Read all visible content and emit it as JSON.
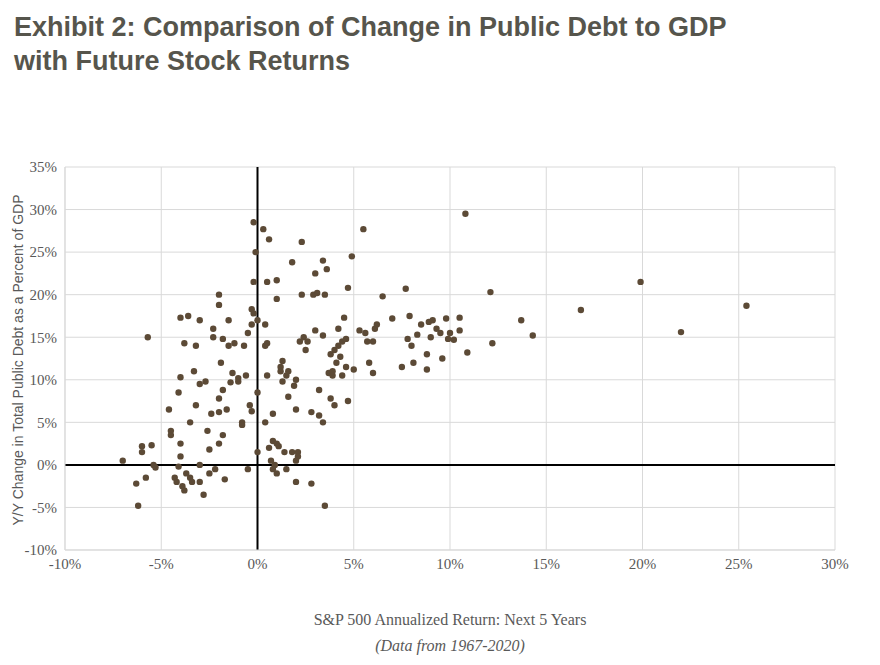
{
  "chart_data": {
    "type": "scatter",
    "title": "Exhibit 2: Comparison of Change in Public Debt to GDP\nwith Future Stock Returns",
    "x_label": "S&P 500 Annualized Return: Next 5 Years",
    "x_label_note": "(Data from 1967-2020)",
    "y_label": "Y/Y Change in Total Public Debt as a Percent of GDP",
    "color": "#5c4a36",
    "marker": "circle",
    "grid": true,
    "xlim": [
      -10,
      30
    ],
    "ylim": [
      -10,
      35
    ],
    "xticks": [
      {
        "value": -10,
        "label": "-10%"
      },
      {
        "value": -5,
        "label": "-5%"
      },
      {
        "value": 0,
        "label": "0%"
      },
      {
        "value": 5,
        "label": "5%"
      },
      {
        "value": 10,
        "label": "10%"
      },
      {
        "value": 15,
        "label": "15%"
      },
      {
        "value": 20,
        "label": "20%"
      },
      {
        "value": 25,
        "label": "25%"
      },
      {
        "value": 30,
        "label": "30%"
      }
    ],
    "yticks": [
      {
        "value": -10,
        "label": "-10%"
      },
      {
        "value": -5,
        "label": "-5%"
      },
      {
        "value": 0,
        "label": "0%"
      },
      {
        "value": 5,
        "label": "5%"
      },
      {
        "value": 10,
        "label": "10%"
      },
      {
        "value": 15,
        "label": "15%"
      },
      {
        "value": 20,
        "label": "20%"
      },
      {
        "value": 25,
        "label": "25%"
      },
      {
        "value": 30,
        "label": "30%"
      },
      {
        "value": 35,
        "label": "35%"
      }
    ],
    "x": [
      -7,
      -6.3,
      -6.2,
      -6,
      -6,
      -5.8,
      -5.7,
      -5.5,
      -5.4,
      -5.3,
      -4.6,
      -4.5,
      -4.5,
      -4.3,
      -4.2,
      -4.1,
      -4,
      -4,
      -4.1,
      -4,
      -4,
      -3.9,
      -3.8,
      -3.8,
      -3.6,
      -3.7,
      -3.5,
      -3.5,
      -3.4,
      -3.3,
      -3.2,
      -3.2,
      -3,
      -3,
      -3,
      -3,
      -2.8,
      -2.7,
      -2.6,
      -2.5,
      -2.5,
      -2.4,
      -2.3,
      -2.3,
      -2.2,
      -2,
      -2,
      -2,
      -2,
      -2,
      -1.9,
      -1.8,
      -1.8,
      -1.8,
      -1.7,
      -1.6,
      -1.5,
      -1.5,
      -1.4,
      -1.3,
      -1.2,
      -1,
      -1,
      -0.8,
      -0.8,
      -0.7,
      -0.6,
      -0.5,
      -0.5,
      -0.4,
      -0.3,
      -0.3,
      -0.2,
      -0.2,
      -0.3,
      -0.2,
      0,
      -0.1,
      0,
      0,
      0.3,
      0.4,
      0.4,
      0.4,
      0.5,
      0.5,
      0.6,
      0.5,
      0.6,
      0.7,
      0.8,
      0.8,
      0.8,
      0.9,
      1,
      1,
      1,
      1,
      1.1,
      1.2,
      1.2,
      1.3,
      1.3,
      1.4,
      1.5,
      1.5,
      1.6,
      1.6,
      1.8,
      1.8,
      1.9,
      2,
      2,
      2,
      2,
      2.1,
      2.1,
      2.2,
      2.3,
      2.3,
      2.4,
      2.5,
      2.6,
      2.8,
      2.8,
      2.9,
      3,
      3,
      3.1,
      3.2,
      3.2,
      3.4,
      3.4,
      3.4,
      3.5,
      3.5,
      3.6,
      3.7,
      3.8,
      3.8,
      3.9,
      3.9,
      4,
      4,
      4.1,
      4.2,
      4.2,
      4.3,
      4.4,
      4.4,
      4.5,
      4.6,
      4.6,
      4.7,
      4.7,
      4.9,
      5,
      5.3,
      5.5,
      5.6,
      5.7,
      5.8,
      6,
      6,
      6.1,
      6.2,
      6.5,
      7,
      7.5,
      7.7,
      7.8,
      7.9,
      8,
      8.1,
      8.3,
      8.5,
      8.8,
      8.8,
      8.9,
      9,
      9.1,
      9.3,
      9.5,
      9.6,
      9.8,
      9.9,
      10,
      10.2,
      10.5,
      10.5,
      10.8,
      10.9,
      12.1,
      12.2,
      13.7,
      14.3,
      16.8,
      19.9,
      22,
      25.4
    ],
    "values": [
      0.5,
      -2.2,
      -4.8,
      2.2,
      1.5,
      -1.5,
      15,
      2.3,
      0,
      -0.3,
      6.5,
      4,
      3.5,
      -1.5,
      -2,
      8.5,
      10.3,
      17.3,
      -0.2,
      1,
      2.5,
      -2.5,
      -3,
      14.3,
      17.5,
      -1,
      -1.5,
      5,
      -2,
      11,
      14,
      7,
      0,
      -2,
      9.5,
      17,
      -3.5,
      9.8,
      4,
      1.8,
      -1,
      6,
      15,
      16,
      -0.5,
      2.5,
      7.8,
      6.2,
      18.8,
      20,
      12,
      14.8,
      3.5,
      8.8,
      -1.7,
      6.5,
      17,
      14,
      9.7,
      10.8,
      14.3,
      9.8,
      10.2,
      5,
      4.7,
      14,
      10.5,
      15.5,
      -0.5,
      7,
      6.3,
      18.3,
      17.8,
      28.5,
      16.5,
      21.5,
      8.5,
      25,
      1.5,
      17,
      27.7,
      14,
      16.5,
      5,
      10.5,
      14.3,
      26.5,
      21.5,
      2,
      0.5,
      2.8,
      -0.5,
      6,
      0,
      -1,
      2.5,
      19.5,
      21.7,
      2.2,
      11,
      11.5,
      9.8,
      12.2,
      1.5,
      10.5,
      -0.5,
      8,
      11,
      1.5,
      23.8,
      9.3,
      0.5,
      6.5,
      10,
      -2,
      1.5,
      1,
      14.5,
      26.2,
      20,
      15,
      13.5,
      14.5,
      -2.2,
      6.2,
      20,
      15.8,
      22.5,
      20.2,
      8.8,
      5.8,
      15.2,
      24,
      5,
      -4.8,
      20,
      23,
      10.8,
      13,
      7.8,
      10.5,
      11,
      7,
      13.5,
      12,
      14,
      16,
      12.7,
      10.5,
      14.5,
      17.3,
      11.5,
      14.8,
      20.8,
      7.5,
      24.5,
      11.2,
      15.8,
      27.7,
      15.5,
      14.5,
      12,
      10.8,
      14.5,
      16,
      16.5,
      19.8,
      17.2,
      11.5,
      20.7,
      14.8,
      17.5,
      14,
      12,
      15.3,
      16.5,
      13,
      11.2,
      16.8,
      15,
      17,
      16,
      15.5,
      12.5,
      17.2,
      14.8,
      15.5,
      14.7,
      15.8,
      17.3,
      29.5,
      13.2,
      20.3,
      14.3,
      17,
      15.2,
      18.2,
      21.5,
      15.6,
      18.7
    ]
  }
}
